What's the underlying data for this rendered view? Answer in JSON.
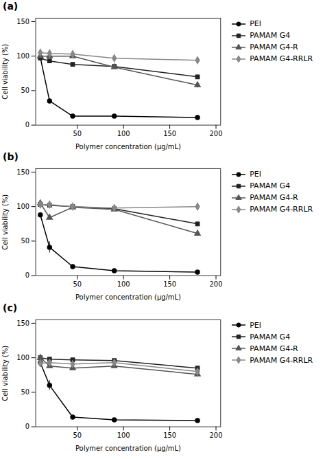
{
  "chart_data": [
    {
      "type": "line",
      "title": "(a)",
      "x": [
        10,
        20,
        45,
        90,
        180
      ],
      "xlabel": "Polymer concentration (μg/mL)",
      "ylabel": "Cell viability (%)",
      "xlim": [
        5,
        205
      ],
      "xticks": [
        50,
        100,
        150,
        200
      ],
      "ylim": [
        0,
        155
      ],
      "yticks": [
        0,
        50,
        100,
        150
      ],
      "grid": false,
      "legend": "right",
      "series": [
        {
          "name": "PEI",
          "color": "#000000",
          "marker": "circle",
          "line_style": "solid",
          "values": [
            98,
            35,
            13,
            13,
            11
          ],
          "errors": [
            3,
            3,
            2,
            1,
            1
          ]
        },
        {
          "name": "PAMAM G4",
          "color": "#222222",
          "marker": "square",
          "line_style": "solid",
          "values": [
            97,
            93,
            88,
            85,
            70
          ],
          "errors": [
            2,
            2,
            2,
            3,
            3
          ]
        },
        {
          "name": "PAMAM G4-R",
          "color": "#555555",
          "marker": "triangle",
          "line_style": "solid",
          "values": [
            100,
            100,
            100,
            84,
            58
          ],
          "errors": [
            2,
            2,
            2,
            3,
            4
          ]
        },
        {
          "name": "PAMAM G4-RRLR",
          "color": "#888888",
          "marker": "diamond",
          "line_style": "solid",
          "values": [
            105,
            104,
            103,
            97,
            94
          ],
          "errors": [
            3,
            2,
            3,
            3,
            3
          ]
        }
      ]
    },
    {
      "type": "line",
      "title": "(b)",
      "x": [
        10,
        20,
        45,
        90,
        180
      ],
      "xlabel": "Polymer concentration (μg/mL)",
      "ylabel": "Cell viability (%)",
      "xlim": [
        5,
        205
      ],
      "xticks": [
        50,
        100,
        150,
        200
      ],
      "ylim": [
        0,
        155
      ],
      "yticks": [
        0,
        50,
        100,
        150
      ],
      "grid": false,
      "legend": "right",
      "series": [
        {
          "name": "PEI",
          "color": "#000000",
          "marker": "circle",
          "line_style": "solid",
          "values": [
            88,
            41,
            13,
            7,
            5
          ],
          "errors": [
            3,
            8,
            2,
            1,
            1
          ]
        },
        {
          "name": "PAMAM G4",
          "color": "#222222",
          "marker": "square",
          "line_style": "solid",
          "values": [
            103,
            102,
            100,
            97,
            75
          ],
          "errors": [
            3,
            2,
            2,
            3,
            3
          ]
        },
        {
          "name": "PAMAM G4-R",
          "color": "#555555",
          "marker": "triangle",
          "line_style": "solid",
          "values": [
            105,
            84,
            99,
            96,
            61
          ],
          "errors": [
            3,
            3,
            3,
            3,
            4
          ]
        },
        {
          "name": "PAMAM G4-RRLR",
          "color": "#888888",
          "marker": "diamond",
          "line_style": "solid",
          "values": [
            103,
            103,
            100,
            98,
            100
          ],
          "errors": [
            3,
            2,
            2,
            3,
            3
          ]
        }
      ]
    },
    {
      "type": "line",
      "title": "(c)",
      "x": [
        10,
        20,
        45,
        90,
        180
      ],
      "xlabel": "Polymer concentration (μg/mL)",
      "ylabel": "Cell viability (%)",
      "xlim": [
        5,
        205
      ],
      "xticks": [
        50,
        100,
        150,
        200
      ],
      "ylim": [
        0,
        155
      ],
      "yticks": [
        0,
        50,
        100,
        150
      ],
      "grid": false,
      "legend": "right",
      "series": [
        {
          "name": "PEI",
          "color": "#000000",
          "marker": "circle",
          "line_style": "solid",
          "values": [
            93,
            60,
            14,
            10,
            9
          ],
          "errors": [
            3,
            7,
            2,
            1,
            1
          ]
        },
        {
          "name": "PAMAM G4",
          "color": "#222222",
          "marker": "square",
          "line_style": "solid",
          "values": [
            100,
            98,
            97,
            96,
            85
          ],
          "errors": [
            2,
            2,
            2,
            3,
            3
          ]
        },
        {
          "name": "PAMAM G4-R",
          "color": "#555555",
          "marker": "triangle",
          "line_style": "solid",
          "values": [
            100,
            88,
            85,
            88,
            76
          ],
          "errors": [
            2,
            3,
            3,
            3,
            4
          ]
        },
        {
          "name": "PAMAM G4-RRLR",
          "color": "#888888",
          "marker": "diamond",
          "line_style": "solid",
          "values": [
            92,
            93,
            91,
            93,
            80
          ],
          "errors": [
            3,
            2,
            3,
            3,
            3
          ]
        }
      ]
    }
  ]
}
